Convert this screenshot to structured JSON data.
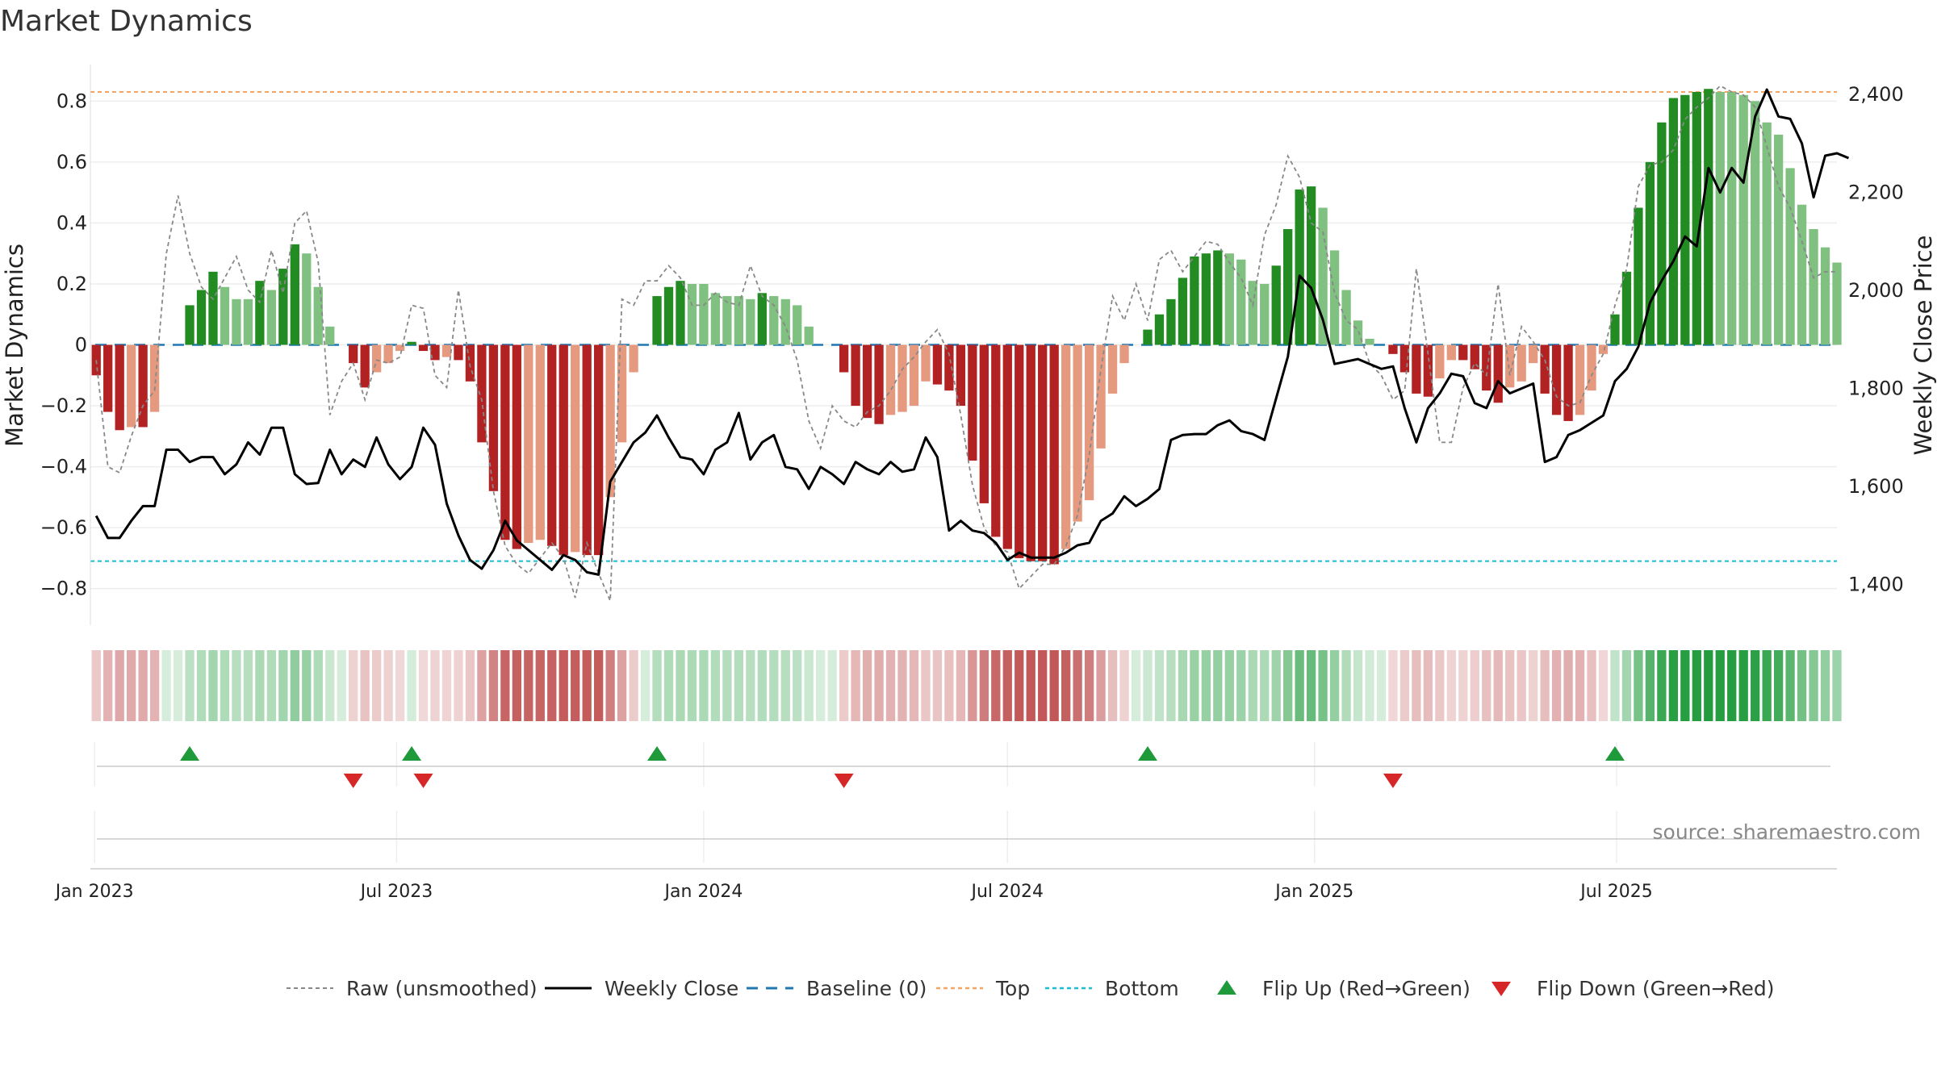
{
  "chart_data": {
    "type": "bar",
    "title": "Market Dynamics",
    "ylabel_left": "Market Dynamics",
    "ylabel_right": "Weekly Close Price",
    "source": "source: sharemaestro.com",
    "start_date": "2023-01-02",
    "yleft_ticks": [
      "0.8",
      "0.6",
      "0.4",
      "0.2",
      "0",
      "−0.2",
      "−0.4",
      "−0.6",
      "−0.8"
    ],
    "yleft_values": [
      0.8,
      0.6,
      0.4,
      0.2,
      0,
      -0.2,
      -0.4,
      -0.6,
      -0.8
    ],
    "yleft_range": [
      -0.92,
      0.92
    ],
    "yright_ticks": [
      "2,400",
      "2,200",
      "2,000",
      "1,800",
      "1,600",
      "1,400"
    ],
    "yright_values": [
      2400,
      2200,
      2000,
      1800,
      1600,
      1400
    ],
    "yright_range": [
      1317,
      2461
    ],
    "xticks": [
      {
        "label": "Jan 2023",
        "date": "2023-01-01"
      },
      {
        "label": "Jul 2023",
        "date": "2023-07-01"
      },
      {
        "label": "Jan 2024",
        "date": "2024-01-01"
      },
      {
        "label": "Jul 2024",
        "date": "2024-07-01"
      },
      {
        "label": "Jan 2025",
        "date": "2025-01-01"
      },
      {
        "label": "Jul 2025",
        "date": "2025-07-01"
      }
    ],
    "top_level": 0.83,
    "bottom_level": -0.71,
    "baseline": 0,
    "histogram": [
      -0.1,
      -0.22,
      -0.28,
      -0.27,
      -0.27,
      -0.22,
      0,
      0,
      0.13,
      0.18,
      0.24,
      0.19,
      0.15,
      0.15,
      0.21,
      0.18,
      0.25,
      0.33,
      0.3,
      0.19,
      0.06,
      0,
      -0.06,
      -0.14,
      -0.09,
      -0.06,
      -0.02,
      0.01,
      -0.02,
      -0.05,
      -0.04,
      -0.05,
      -0.12,
      -0.32,
      -0.48,
      -0.64,
      -0.67,
      -0.65,
      -0.64,
      -0.66,
      -0.69,
      -0.68,
      -0.69,
      -0.69,
      -0.5,
      -0.32,
      -0.09,
      0,
      0.16,
      0.19,
      0.21,
      0.2,
      0.2,
      0.17,
      0.16,
      0.16,
      0.15,
      0.17,
      0.16,
      0.15,
      0.13,
      0.06,
      0,
      0,
      -0.09,
      -0.2,
      -0.24,
      -0.26,
      -0.23,
      -0.22,
      -0.2,
      -0.12,
      -0.13,
      -0.15,
      -0.2,
      -0.38,
      -0.52,
      -0.63,
      -0.67,
      -0.7,
      -0.71,
      -0.71,
      -0.72,
      -0.67,
      -0.58,
      -0.51,
      -0.34,
      -0.16,
      -0.06,
      0,
      0.05,
      0.1,
      0.15,
      0.22,
      0.29,
      0.3,
      0.31,
      0.3,
      0.28,
      0.21,
      0.2,
      0.26,
      0.38,
      0.51,
      0.52,
      0.45,
      0.31,
      0.18,
      0.08,
      0.02,
      0,
      -0.03,
      -0.09,
      -0.16,
      -0.17,
      -0.11,
      -0.05,
      -0.05,
      -0.08,
      -0.15,
      -0.19,
      -0.14,
      -0.12,
      -0.06,
      -0.16,
      -0.23,
      -0.25,
      -0.23,
      -0.15,
      -0.03,
      0.1,
      0.24,
      0.45,
      0.6,
      0.73,
      0.81,
      0.82,
      0.83,
      0.84,
      0.83,
      0.83,
      0.82,
      0.8,
      0.73,
      0.69,
      0.58,
      0.46,
      0.38,
      0.32,
      0.27
    ],
    "weekly_close": [
      1540,
      1495,
      1495,
      1530,
      1560,
      1560,
      1675,
      1675,
      1650,
      1660,
      1660,
      1625,
      1645,
      1690,
      1665,
      1720,
      1720,
      1625,
      1605,
      1607,
      1675,
      1625,
      1655,
      1640,
      1700,
      1645,
      1615,
      1640,
      1720,
      1685,
      1565,
      1500,
      1450,
      1432,
      1470,
      1530,
      1490,
      1470,
      1450,
      1430,
      1460,
      1450,
      1425,
      1420,
      1610,
      1650,
      1690,
      1710,
      1745,
      1700,
      1660,
      1655,
      1625,
      1675,
      1690,
      1750,
      1655,
      1690,
      1705,
      1640,
      1635,
      1595,
      1640,
      1625,
      1605,
      1650,
      1635,
      1625,
      1650,
      1630,
      1635,
      1700,
      1660,
      1510,
      1530,
      1510,
      1505,
      1485,
      1450,
      1465,
      1455,
      1455,
      1455,
      1465,
      1480,
      1485,
      1530,
      1545,
      1580,
      1560,
      1575,
      1595,
      1695,
      1705,
      1707,
      1707,
      1725,
      1735,
      1713,
      1707,
      1695,
      1780,
      1865,
      2030,
      2005,
      1940,
      1850,
      1855,
      1860,
      1850,
      1840,
      1845,
      1760,
      1690,
      1760,
      1790,
      1830,
      1825,
      1770,
      1760,
      1815,
      1790,
      1800,
      1810,
      1650,
      1660,
      1705,
      1715,
      1730,
      1745,
      1815,
      1840,
      1885,
      1975,
      2020,
      2060,
      2110,
      2090,
      2250,
      2200,
      2250,
      2220,
      2355,
      2410,
      2355,
      2350,
      2300,
      2190,
      2275,
      2280,
      2270
    ],
    "raw": [
      -0.05,
      -0.4,
      -0.42,
      -0.3,
      -0.2,
      -0.15,
      0.3,
      0.49,
      0.3,
      0.19,
      0.15,
      0.22,
      0.29,
      0.18,
      0.14,
      0.31,
      0.17,
      0.4,
      0.44,
      0.27,
      -0.23,
      -0.12,
      -0.06,
      -0.18,
      -0.05,
      -0.06,
      -0.04,
      0.13,
      0.12,
      -0.1,
      -0.14,
      0.18,
      -0.07,
      -0.18,
      -0.48,
      -0.66,
      -0.72,
      -0.75,
      -0.7,
      -0.65,
      -0.7,
      -0.83,
      -0.65,
      -0.75,
      -0.84,
      0.15,
      0.13,
      0.21,
      0.21,
      0.26,
      0.22,
      0.13,
      0.13,
      0.17,
      0.14,
      0.13,
      0.26,
      0.16,
      0.13,
      0.06,
      -0.05,
      -0.25,
      -0.34,
      -0.2,
      -0.25,
      -0.27,
      -0.22,
      -0.2,
      -0.15,
      -0.08,
      -0.04,
      0.01,
      0.05,
      -0.03,
      -0.23,
      -0.46,
      -0.6,
      -0.66,
      -0.68,
      -0.8,
      -0.76,
      -0.72,
      -0.72,
      -0.66,
      -0.56,
      -0.36,
      -0.08,
      0.16,
      0.08,
      0.2,
      0.08,
      0.28,
      0.31,
      0.24,
      0.29,
      0.34,
      0.33,
      0.27,
      0.22,
      0.13,
      0.36,
      0.46,
      0.62,
      0.55,
      0.4,
      0.37,
      0.17,
      0.08,
      0.05,
      -0.06,
      -0.1,
      -0.18,
      -0.15,
      0.25,
      -0.03,
      -0.32,
      -0.32,
      -0.14,
      -0.06,
      -0.1,
      0.2,
      -0.1,
      0.06,
      0.01,
      -0.05,
      -0.17,
      -0.2,
      -0.19,
      -0.1,
      -0.03,
      0.13,
      0.25,
      0.52,
      0.59,
      0.6,
      0.64,
      0.74,
      0.78,
      0.81,
      0.85,
      0.83,
      0.82,
      0.78,
      0.65,
      0.52,
      0.45,
      0.34,
      0.22,
      0.24,
      0.24
    ]
  },
  "legend": [
    {
      "key": "raw",
      "label": "Raw (unsmoothed)"
    },
    {
      "key": "close",
      "label": "Weekly Close"
    },
    {
      "key": "baseline",
      "label": "Baseline (0)"
    },
    {
      "key": "top",
      "label": "Top"
    },
    {
      "key": "bottom",
      "label": "Bottom"
    },
    {
      "key": "flipup",
      "label": "Flip Up (Red→Green)"
    },
    {
      "key": "flipdown",
      "label": "Flip Down (Green→Red)"
    }
  ],
  "colors": {
    "dark_green": "#228b22",
    "light_green": "#80c080",
    "dark_red": "#b22222",
    "light_red": "#e59a80",
    "close_line": "#000000",
    "raw_line": "#888888",
    "baseline": "#1f77b4",
    "top": "#f4a460",
    "bottom": "#17becf",
    "flip_up": "#1e9a3a",
    "flip_down": "#d62728"
  }
}
